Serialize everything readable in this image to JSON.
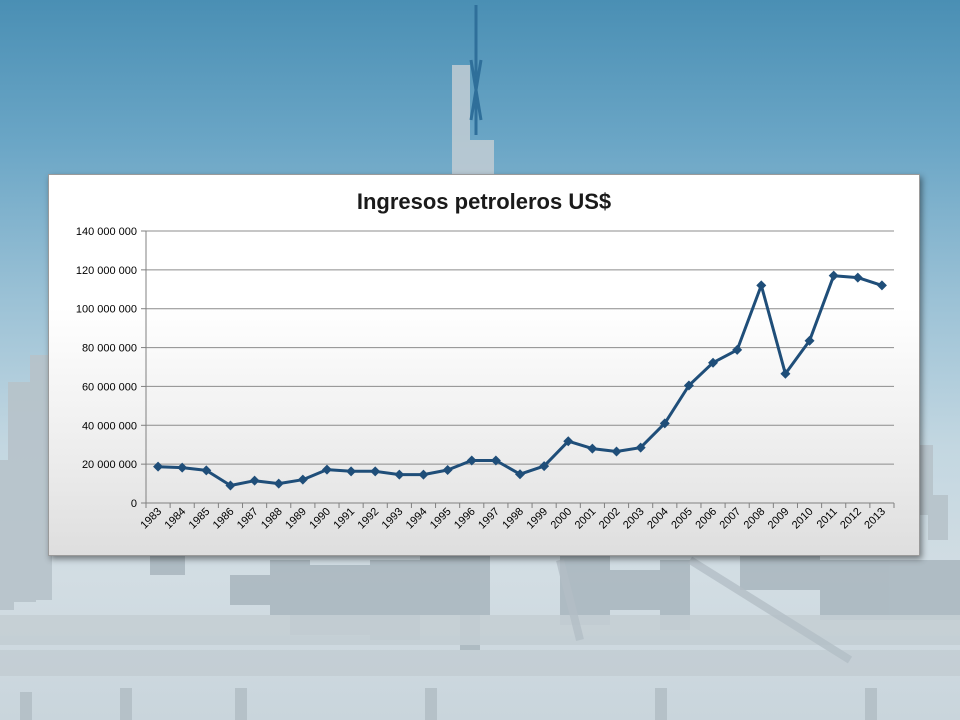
{
  "chart_data": {
    "type": "line",
    "title": "Ingresos petroleros US$",
    "xlabel": "",
    "ylabel": "",
    "categories": [
      "1983",
      "1984",
      "1985",
      "1986",
      "1987",
      "1988",
      "1989",
      "1990",
      "1991",
      "1992",
      "1993",
      "1994",
      "1995",
      "1996",
      "1997",
      "1998",
      "1999",
      "2000",
      "2001",
      "2002",
      "2003",
      "2004",
      "2005",
      "2006",
      "2007",
      "2008",
      "2009",
      "2010",
      "2011",
      "2012",
      "2013"
    ],
    "series": [
      {
        "name": "",
        "values": [
          18700000,
          18200000,
          16800000,
          9000000,
          11500000,
          10000000,
          12000000,
          17200000,
          16300000,
          16300000,
          14600000,
          14600000,
          17000000,
          21900000,
          21900000,
          14800000,
          19000000,
          31800000,
          28000000,
          26500000,
          28500000,
          41000000,
          60500000,
          72200000,
          78800000,
          112000000,
          66500000,
          83500000,
          117000000,
          116000000,
          112000000
        ]
      }
    ],
    "ylim": [
      0,
      140000000
    ],
    "yticks": [
      0,
      20000000,
      40000000,
      60000000,
      80000000,
      100000000,
      120000000,
      140000000
    ],
    "ytick_labels": [
      "0",
      "20 000 000",
      "40 000 000",
      "60 000 000",
      "80 000 000",
      "100 000 000",
      "120 000 000",
      "140 000 000"
    ],
    "grid": true,
    "legend": "none",
    "line_color": "#1f4e79",
    "marker": "diamond"
  }
}
